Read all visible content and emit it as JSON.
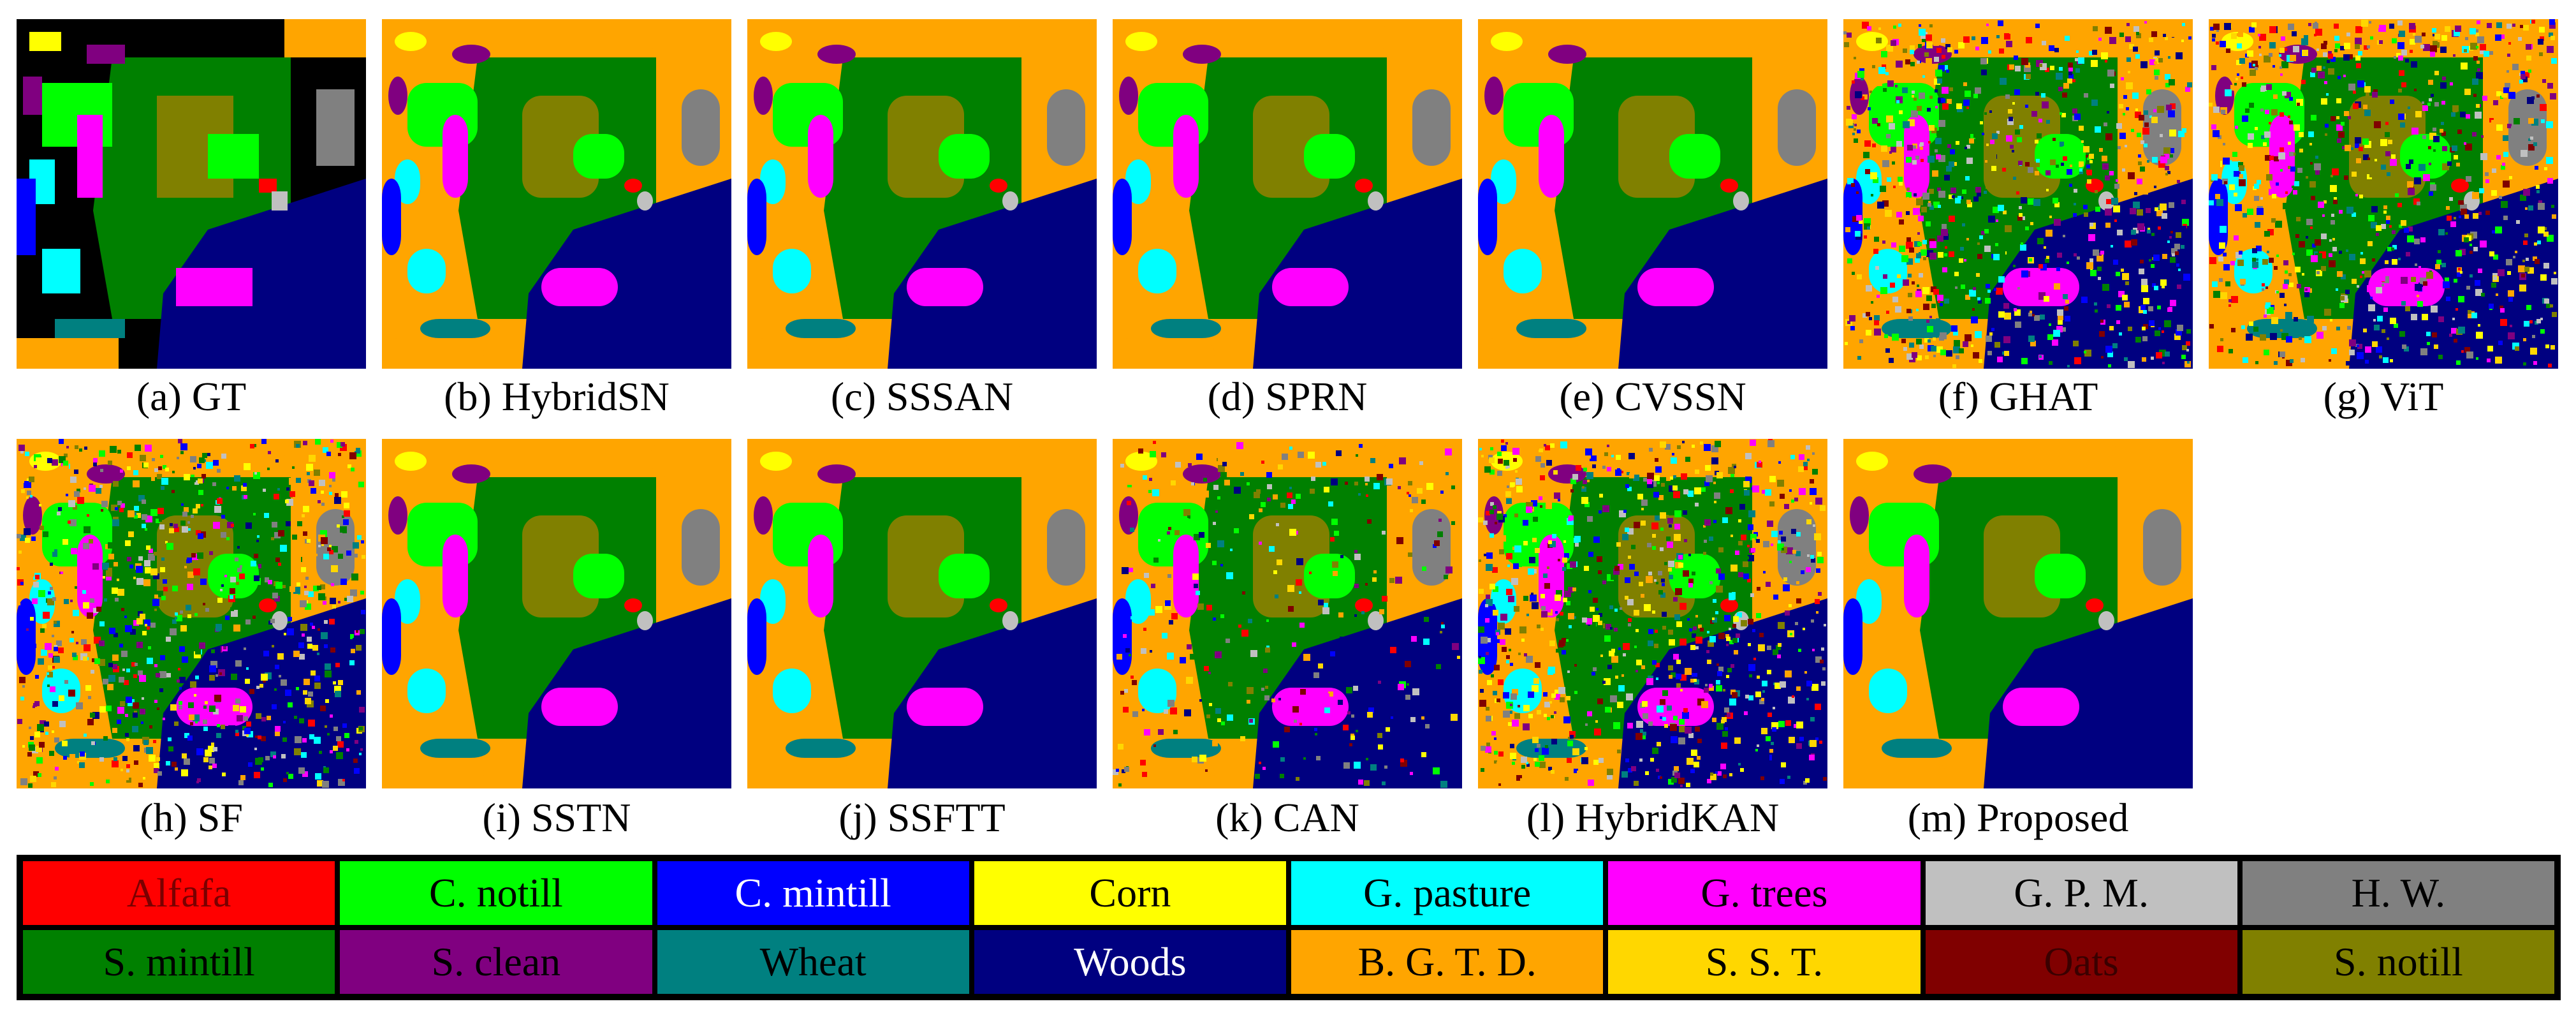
{
  "panels": [
    {
      "caption": "(a) GT",
      "kind": "gt"
    },
    {
      "caption": "(b) HybridSN",
      "kind": "smooth"
    },
    {
      "caption": "(c) SSSAN",
      "kind": "smooth"
    },
    {
      "caption": "(d) SPRN",
      "kind": "smooth"
    },
    {
      "caption": "(e) CVSSN",
      "kind": "smooth"
    },
    {
      "caption": "(f) GHAT",
      "kind": "noisy"
    },
    {
      "caption": "(g) ViT",
      "kind": "noisy"
    },
    {
      "caption": "(h) SF",
      "kind": "noisy"
    },
    {
      "caption": "(i) SSTN",
      "kind": "smooth"
    },
    {
      "caption": "(j) SSFTT",
      "kind": "smooth"
    },
    {
      "caption": "(k) CAN",
      "kind": "semi"
    },
    {
      "caption": "(l) HybridKAN",
      "kind": "noisy"
    },
    {
      "caption": "(m) Proposed",
      "kind": "smooth"
    }
  ],
  "legend": [
    {
      "label": "Alfafa",
      "color": "#ff0000",
      "text_color": "#7a0000"
    },
    {
      "label": "C. notill",
      "color": "#00ff00",
      "text_color": "#000000"
    },
    {
      "label": "C. mintill",
      "color": "#0000ff",
      "text_color": "#ffffff"
    },
    {
      "label": "Corn",
      "color": "#ffff00",
      "text_color": "#000000"
    },
    {
      "label": "G. pasture",
      "color": "#00ffff",
      "text_color": "#000000"
    },
    {
      "label": "G. trees",
      "color": "#ff00ff",
      "text_color": "#000000"
    },
    {
      "label": "G. P. M.",
      "color": "#c0c0c0",
      "text_color": "#000000"
    },
    {
      "label": "H. W.",
      "color": "#808080",
      "text_color": "#000000"
    },
    {
      "label": "S. mintill",
      "color": "#008000",
      "text_color": "#000000"
    },
    {
      "label": "S. clean",
      "color": "#800080",
      "text_color": "#000000"
    },
    {
      "label": "Wheat",
      "color": "#008080",
      "text_color": "#000000"
    },
    {
      "label": "Woods",
      "color": "#000080",
      "text_color": "#ffffff"
    },
    {
      "label": "B. G. T. D.",
      "color": "#ffa500",
      "text_color": "#000000"
    },
    {
      "label": "S. S. T.",
      "color": "#ffd700",
      "text_color": "#000000"
    },
    {
      "label": "Oats",
      "color": "#800000",
      "text_color": "#3a0000"
    },
    {
      "label": "S. notill",
      "color": "#808000",
      "text_color": "#000000"
    }
  ]
}
